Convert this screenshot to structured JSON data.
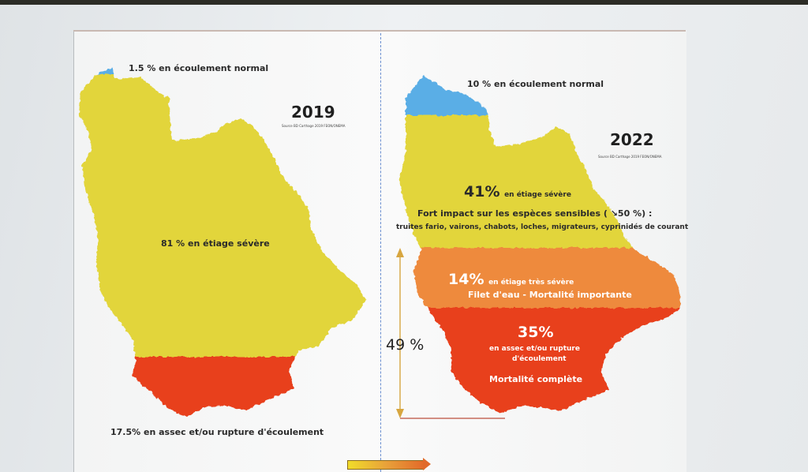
{
  "colors": {
    "normal_flow": "#5aaee6",
    "severe_low": "#e2d53a",
    "very_severe_low": "#ee8a3e",
    "dry": "#e8401e"
  },
  "map_2019": {
    "year": "2019",
    "source": "Source BD Carthage 2019 FEON/ONEMA",
    "normal_label": "1.5 % en écoulement normal",
    "severe_label": "81 % en étiage sévère",
    "dry_label": "17.5% en assec et/ou rupture d'écoulement",
    "normal_pct": 1.5,
    "severe_pct": 81,
    "dry_pct": 17.5
  },
  "map_2022": {
    "year": "2022",
    "source": "Source BD Carthage 2019 FEON/ONEMA",
    "normal_label": "10 % en écoulement normal",
    "severe_value": "41%",
    "severe_text": "en étiage sévère",
    "impact_line": "Fort impact sur les espèces sensibles ( ↘50 %) :",
    "species_line": "truites fario, vairons, chabots, loches, migrateurs, cyprinidés de courant",
    "very_severe_value": "14%",
    "very_severe_text": "en étiage très sévère",
    "very_severe_note": "Filet d'eau - Mortalité importante",
    "dry_value": "35%",
    "dry_text_1": "en assec et/ou rupture",
    "dry_text_2": "d'écoulement",
    "dry_note": "Mortalité complète",
    "combined_label": "49 %",
    "normal_pct": 10,
    "severe_pct": 41,
    "very_severe_pct": 14,
    "dry_pct": 35,
    "combined_pct": 49
  }
}
